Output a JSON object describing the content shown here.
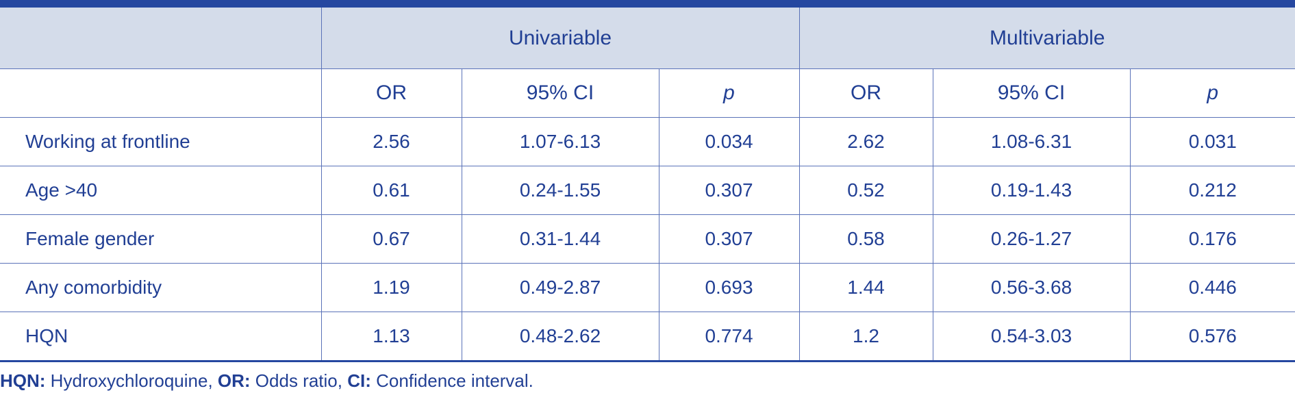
{
  "table": {
    "groups": [
      "Univariable",
      "Multivariable"
    ],
    "subheaders": {
      "univariable": {
        "or": "OR",
        "ci": "95% CI",
        "p": "p"
      },
      "multivariable": {
        "or": "OR",
        "ci": "95% CI",
        "p": "p"
      }
    },
    "rows": [
      {
        "label": "Working at frontline",
        "uni_or": "2.56",
        "uni_ci": "1.07-6.13",
        "uni_p": "0.034",
        "multi_or": "2.62",
        "multi_ci": "1.08-6.31",
        "multi_p": "0.031"
      },
      {
        "label": "Age >40",
        "uni_or": "0.61",
        "uni_ci": "0.24-1.55",
        "uni_p": "0.307",
        "multi_or": "0.52",
        "multi_ci": "0.19-1.43",
        "multi_p": "0.212"
      },
      {
        "label": "Female gender",
        "uni_or": "0.67",
        "uni_ci": "0.31-1.44",
        "uni_p": "0.307",
        "multi_or": "0.58",
        "multi_ci": "0.26-1.27",
        "multi_p": "0.176"
      },
      {
        "label": "Any comorbidity",
        "uni_or": "1.19",
        "uni_ci": "0.49-2.87",
        "uni_p": "0.693",
        "multi_or": "1.44",
        "multi_ci": "0.56-3.68",
        "multi_p": "0.446"
      },
      {
        "label": "HQN",
        "uni_or": "1.13",
        "uni_ci": "0.48-2.62",
        "uni_p": "0.774",
        "multi_or": "1.2",
        "multi_ci": "0.54-3.03",
        "multi_p": "0.576"
      }
    ]
  },
  "footnote": {
    "items": [
      {
        "abbr": "HQN:",
        "text": " Hydroxychloroquine, "
      },
      {
        "abbr": "OR:",
        "text": " Odds ratio, "
      },
      {
        "abbr": "CI:",
        "text": " Confidence interval."
      }
    ]
  },
  "colors": {
    "text": "#213f94",
    "header_bg": "#d4dcea",
    "accent_bar": "#2547a0",
    "grid": "#5a72b8"
  }
}
